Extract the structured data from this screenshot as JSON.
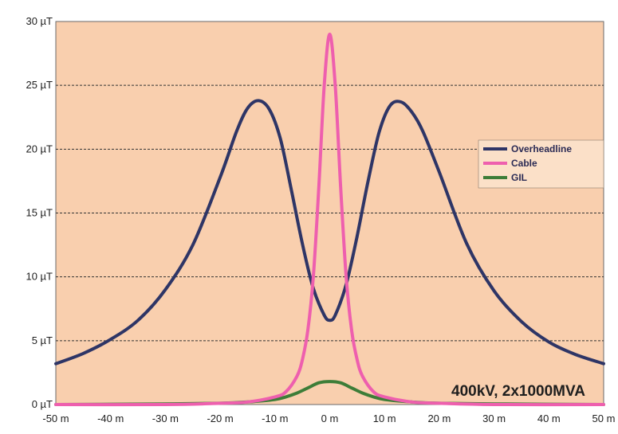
{
  "chart_data": {
    "type": "line",
    "title": "",
    "xlabel": "",
    "ylabel": "",
    "xlim": [
      -50,
      50
    ],
    "ylim": [
      0,
      30
    ],
    "x_ticks": [
      {
        "value": -50,
        "label": "-50 m"
      },
      {
        "value": -40,
        "label": "-40 m"
      },
      {
        "value": -30,
        "label": "-30 m"
      },
      {
        "value": -20,
        "label": "-20 m"
      },
      {
        "value": -10,
        "label": "-10 m"
      },
      {
        "value": 0,
        "label": "0 m"
      },
      {
        "value": 10,
        "label": "10 m"
      },
      {
        "value": 20,
        "label": "20 m"
      },
      {
        "value": 30,
        "label": "30 m"
      },
      {
        "value": 40,
        "label": "40 m"
      },
      {
        "value": 50,
        "label": "50 m"
      }
    ],
    "y_ticks": [
      {
        "value": 0,
        "label": "0 µT"
      },
      {
        "value": 5,
        "label": "5 µT"
      },
      {
        "value": 10,
        "label": "10 µT"
      },
      {
        "value": 15,
        "label": "15 µT"
      },
      {
        "value": 20,
        "label": "20 µT"
      },
      {
        "value": 25,
        "label": "25 µT"
      },
      {
        "value": 30,
        "label": "30 µT"
      }
    ],
    "grid": {
      "horizontal": true,
      "style": "dashed"
    },
    "legend": {
      "placement": "right"
    },
    "annotation": "400kV, 2x1000MVA",
    "colors": {
      "plot_background": "#f9cfae",
      "legend_background": "#fbe0c8",
      "grid": "#333333"
    },
    "series": [
      {
        "name": "Overheadline",
        "color": "#2e3566",
        "x": [
          -50,
          -45,
          -40,
          -35,
          -30,
          -25,
          -20,
          -17,
          -15,
          -13,
          -11,
          -9,
          -7,
          -5,
          -3,
          -1,
          0,
          1,
          3,
          5,
          7,
          9,
          11,
          13,
          15,
          17,
          20,
          25,
          30,
          35,
          40,
          45,
          50
        ],
        "y": [
          3.2,
          4.0,
          5.1,
          6.6,
          9.0,
          12.5,
          17.8,
          21.4,
          23.2,
          23.8,
          23.1,
          20.8,
          16.8,
          12.6,
          9.1,
          7.0,
          6.6,
          7.0,
          9.4,
          13.2,
          17.5,
          21.3,
          23.4,
          23.7,
          22.9,
          21.4,
          18.2,
          12.6,
          8.9,
          6.5,
          4.9,
          3.9,
          3.2
        ]
      },
      {
        "name": "Cable",
        "color": "#ee5fae",
        "x": [
          -50,
          -30,
          -20,
          -15,
          -10,
          -8,
          -6,
          -5,
          -4,
          -3,
          -2,
          -1,
          0,
          1,
          2,
          3,
          4,
          5,
          6,
          8,
          10,
          15,
          20,
          30,
          50
        ],
        "y": [
          0.0,
          0.0,
          0.1,
          0.2,
          0.6,
          1.0,
          2.2,
          3.5,
          5.8,
          10.0,
          17.0,
          25.0,
          29.0,
          25.0,
          17.0,
          10.0,
          5.8,
          3.5,
          2.2,
          1.0,
          0.6,
          0.2,
          0.1,
          0.0,
          0.0
        ]
      },
      {
        "name": "GIL",
        "color": "#3d7d38",
        "x": [
          -50,
          -30,
          -20,
          -15,
          -10,
          -8,
          -6,
          -4,
          -2,
          0,
          2,
          4,
          6,
          8,
          10,
          15,
          20,
          30,
          50
        ],
        "y": [
          0.0,
          0.05,
          0.1,
          0.2,
          0.4,
          0.6,
          0.9,
          1.3,
          1.7,
          1.8,
          1.7,
          1.3,
          0.9,
          0.6,
          0.4,
          0.2,
          0.1,
          0.05,
          0.0
        ]
      }
    ]
  }
}
